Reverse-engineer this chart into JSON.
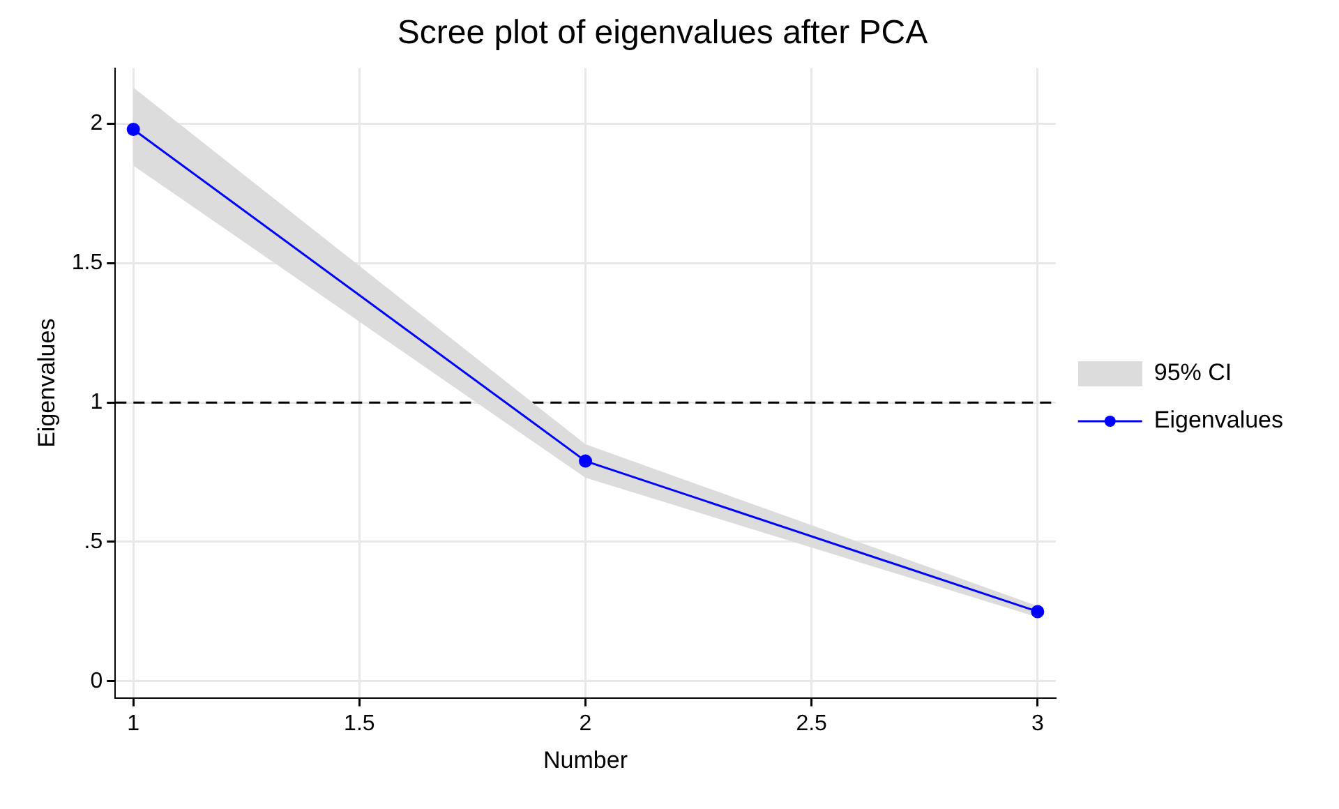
{
  "chart_data": {
    "type": "line",
    "title": "Scree plot of eigenvalues after PCA",
    "xlabel": "Number",
    "ylabel": "Eigenvalues",
    "x": [
      1,
      2,
      3
    ],
    "series": [
      {
        "name": "Eigenvalues",
        "type": "line",
        "color": "#0000ff",
        "values": [
          1.98,
          0.79,
          0.25
        ],
        "lower": [
          1.85,
          0.73,
          0.23
        ],
        "upper": [
          2.13,
          0.85,
          0.27
        ]
      }
    ],
    "annotations": [
      "95% CI"
    ],
    "xlim": [
      0.96,
      3.04
    ],
    "xticks": [
      1,
      1.5,
      2,
      2.5,
      3
    ],
    "ylim": [
      -0.06,
      2.2
    ],
    "yticks": [
      0,
      {
        "value": 0.5,
        "label": ".5"
      },
      1,
      1.5,
      2
    ],
    "ref_lines": [
      {
        "axis": "y",
        "value": 1,
        "color": "#000000",
        "line_style": "dashed"
      }
    ],
    "grid": true,
    "legend": "right",
    "marker": "circle",
    "line_style": "solid"
  }
}
